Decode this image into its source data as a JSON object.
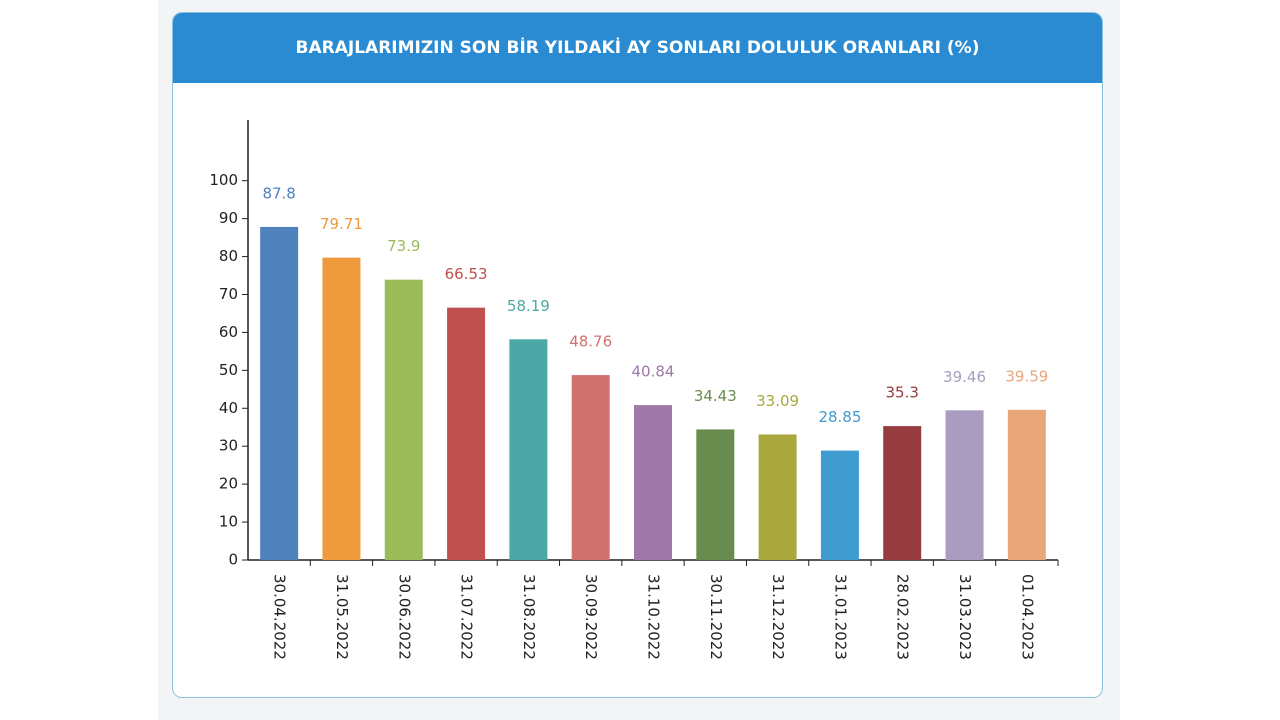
{
  "chart_data": {
    "type": "bar",
    "title": "BARAJLARIMIZIN SON BİR YILDAKİ AY SONLARI DOLULUK ORANLARI (%)",
    "categories": [
      "30.04.2022",
      "31.05.2022",
      "30.06.2022",
      "31.07.2022",
      "31.08.2022",
      "30.09.2022",
      "31.10.2022",
      "30.11.2022",
      "31.12.2022",
      "31.01.2023",
      "28.02.2023",
      "31.03.2023",
      "01.04.2023"
    ],
    "values": [
      87.8,
      79.71,
      73.9,
      66.53,
      58.19,
      48.76,
      40.84,
      34.43,
      33.09,
      28.85,
      35.3,
      39.46,
      39.59
    ],
    "colors": [
      "#4f81bd",
      "#f09a3e",
      "#9bbb59",
      "#c0504d",
      "#4ba8a6",
      "#d0736f",
      "#9e78a8",
      "#6a8b4e",
      "#a8a83e",
      "#3f9ad0",
      "#963c40",
      "#a99cc0",
      "#e8a67a"
    ],
    "ylim": [
      0,
      116
    ],
    "yticks": [
      0,
      10,
      20,
      30,
      40,
      50,
      60,
      70,
      80,
      90,
      100
    ]
  }
}
